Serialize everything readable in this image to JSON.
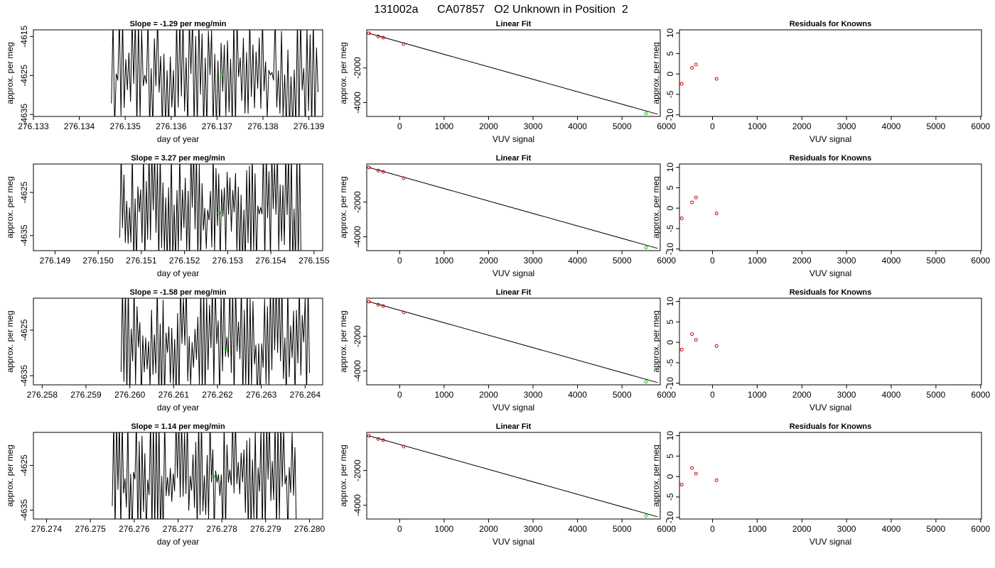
{
  "figure": {
    "title": "131002a      CA07857   O2 Unknown in Position  2"
  },
  "colors": {
    "axis": "#000000",
    "trace": "#000000",
    "known_point": "#cc0000",
    "unknown_point": "#00cc00",
    "fit_line": "#000000"
  },
  "chart_data": [
    {
      "type": "line",
      "row": 1,
      "panel": "time-trace",
      "title": "Slope =  -1.29  per meg/min",
      "xlabel": "day of year",
      "ylabel": "approx. per meg",
      "xlim": [
        276.133,
        276.1393
      ],
      "ylim": [
        -4635.5,
        -4613.3
      ],
      "x_ticks": [
        "276.133",
        "276.134",
        "276.135",
        "276.136",
        "276.137",
        "276.138",
        "276.139"
      ],
      "y_ticks": [
        "-4615",
        "-4625",
        "-4635"
      ],
      "trace": {
        "start": 276.1347,
        "end": 276.1392,
        "seed": 11
      },
      "unknown_point": {
        "x": 276.1371,
        "y": -4624.8
      }
    },
    {
      "type": "scatter",
      "row": 1,
      "panel": "linear-fit",
      "title": "Linear Fit",
      "xlabel": "VUV signal",
      "ylabel": "approx. per meg",
      "xlim": [
        -740,
        5860
      ],
      "ylim": [
        -4800,
        200
      ],
      "x_ticks": [
        "0",
        "1000",
        "2000",
        "3000",
        "4000",
        "5000",
        "6000"
      ],
      "y_ticks": [
        "-2000",
        "-4000"
      ],
      "knowns": [
        {
          "x": -690,
          "y": 0
        },
        {
          "x": -480,
          "y": -180
        },
        {
          "x": -370,
          "y": -250
        },
        {
          "x": 90,
          "y": -620
        }
      ],
      "unknown": {
        "x": 5540,
        "y": -4625
      },
      "fit": {
        "x": [
          -690,
          5800
        ],
        "y": [
          0,
          -4670
        ]
      }
    },
    {
      "type": "scatter",
      "row": 1,
      "panel": "residuals",
      "title": "Residuals for Knowns",
      "xlabel": "VUV signal",
      "ylabel": "approx. per meg",
      "xlim": [
        -740,
        6020
      ],
      "ylim": [
        -10.4,
        10.8
      ],
      "x_ticks": [
        "0",
        "1000",
        "2000",
        "3000",
        "4000",
        "5000",
        "6000"
      ],
      "y_ticks": [
        "10",
        "5",
        "0",
        "-5",
        "-10"
      ],
      "points": [
        {
          "x": -690,
          "y": -2.4
        },
        {
          "x": -460,
          "y": 1.5
        },
        {
          "x": -370,
          "y": 2.3
        },
        {
          "x": 90,
          "y": -1.2
        }
      ]
    },
    {
      "type": "line",
      "row": 2,
      "panel": "time-trace",
      "title": "Slope =  3.27  per meg/min",
      "xlabel": "day of year",
      "ylabel": "approx. per meg",
      "xlim": [
        276.1485,
        276.1552
      ],
      "ylim": [
        -4638.5,
        -4618.4
      ],
      "x_ticks": [
        "276.149",
        "276.150",
        "276.151",
        "276.152",
        "276.153",
        "276.154",
        "276.155"
      ],
      "y_ticks": [
        "-4625",
        "-4635"
      ],
      "trace": {
        "start": 276.1505,
        "end": 276.1547,
        "seed": 23
      },
      "unknown_point": {
        "x": 276.1528,
        "y": -4629.7
      }
    },
    {
      "type": "scatter",
      "row": 2,
      "panel": "linear-fit",
      "title": "Linear Fit",
      "xlabel": "VUV signal",
      "ylabel": "approx. per meg",
      "xlim": [
        -740,
        5860
      ],
      "ylim": [
        -4800,
        200
      ],
      "x_ticks": [
        "0",
        "1000",
        "2000",
        "3000",
        "4000",
        "5000",
        "6000"
      ],
      "y_ticks": [
        "-2000",
        "-4000"
      ],
      "knowns": [
        {
          "x": -690,
          "y": 0
        },
        {
          "x": -480,
          "y": -180
        },
        {
          "x": -370,
          "y": -250
        },
        {
          "x": 90,
          "y": -620
        }
      ],
      "unknown": {
        "x": 5540,
        "y": -4625
      },
      "fit": {
        "x": [
          -690,
          5800
        ],
        "y": [
          0,
          -4670
        ]
      }
    },
    {
      "type": "scatter",
      "row": 2,
      "panel": "residuals",
      "title": "Residuals for Knowns",
      "xlabel": "VUV signal",
      "ylabel": "approx. per meg",
      "xlim": [
        -740,
        6020
      ],
      "ylim": [
        -10.4,
        10.8
      ],
      "x_ticks": [
        "0",
        "1000",
        "2000",
        "3000",
        "4000",
        "5000",
        "6000"
      ],
      "y_ticks": [
        "10",
        "5",
        "0",
        "-5",
        "-10"
      ],
      "points": [
        {
          "x": -690,
          "y": -2.5
        },
        {
          "x": -460,
          "y": 1.4
        },
        {
          "x": -370,
          "y": 2.6
        },
        {
          "x": 90,
          "y": -1.3
        }
      ]
    },
    {
      "type": "line",
      "row": 3,
      "panel": "time-trace",
      "title": "Slope =  -1.58  per meg/min",
      "xlabel": "day of year",
      "ylabel": "approx. per meg",
      "xlim": [
        276.2578,
        276.2644
      ],
      "ylim": [
        -4637.0,
        -4618.0
      ],
      "x_ticks": [
        "276.258",
        "276.259",
        "276.260",
        "276.261",
        "276.262",
        "276.263",
        "276.264"
      ],
      "y_ticks": [
        "-4625",
        "-4635"
      ],
      "trace": {
        "start": 276.2598,
        "end": 276.2641,
        "seed": 37
      },
      "unknown_point": {
        "x": 276.2622,
        "y": -4629.2
      }
    },
    {
      "type": "scatter",
      "row": 3,
      "panel": "linear-fit",
      "title": "Linear Fit",
      "xlabel": "VUV signal",
      "ylabel": "approx. per meg",
      "xlim": [
        -740,
        5860
      ],
      "ylim": [
        -4800,
        200
      ],
      "x_ticks": [
        "0",
        "1000",
        "2000",
        "3000",
        "4000",
        "5000",
        "6000"
      ],
      "y_ticks": [
        "-2000",
        "-4000"
      ],
      "knowns": [
        {
          "x": -690,
          "y": 0
        },
        {
          "x": -480,
          "y": -180
        },
        {
          "x": -370,
          "y": -250
        },
        {
          "x": 90,
          "y": -620
        }
      ],
      "unknown": {
        "x": 5540,
        "y": -4625
      },
      "fit": {
        "x": [
          -690,
          5800
        ],
        "y": [
          0,
          -4670
        ]
      }
    },
    {
      "type": "scatter",
      "row": 3,
      "panel": "residuals",
      "title": "Residuals for Knowns",
      "xlabel": "VUV signal",
      "ylabel": "approx. per meg",
      "xlim": [
        -740,
        6020
      ],
      "ylim": [
        -10.4,
        10.8
      ],
      "x_ticks": [
        "0",
        "1000",
        "2000",
        "3000",
        "4000",
        "5000",
        "6000"
      ],
      "y_ticks": [
        "10",
        "5",
        "0",
        "-5",
        "-10"
      ],
      "points": [
        {
          "x": -690,
          "y": -1.8
        },
        {
          "x": -460,
          "y": 2.0
        },
        {
          "x": -370,
          "y": 0.6
        },
        {
          "x": 90,
          "y": -0.9
        }
      ]
    },
    {
      "type": "line",
      "row": 4,
      "panel": "time-trace",
      "title": "Slope =  1.14  per meg/min",
      "xlabel": "day of year",
      "ylabel": "approx. per meg",
      "xlim": [
        276.2737,
        276.2803
      ],
      "ylim": [
        -4637.0,
        -4617.6
      ],
      "x_ticks": [
        "276.274",
        "276.275",
        "276.276",
        "276.277",
        "276.278",
        "276.279",
        "276.280"
      ],
      "y_ticks": [
        "-4625",
        "-4635"
      ],
      "trace": {
        "start": 276.2755,
        "end": 276.2797,
        "seed": 53
      },
      "unknown_point": {
        "x": 276.2778,
        "y": -4627.5
      }
    },
    {
      "type": "scatter",
      "row": 4,
      "panel": "linear-fit",
      "title": "Linear Fit",
      "xlabel": "VUV signal",
      "ylabel": "approx. per meg",
      "xlim": [
        -740,
        5860
      ],
      "ylim": [
        -4800,
        200
      ],
      "x_ticks": [
        "0",
        "1000",
        "2000",
        "3000",
        "4000",
        "5000",
        "6000"
      ],
      "y_ticks": [
        "-2000",
        "-4000"
      ],
      "knowns": [
        {
          "x": -690,
          "y": 0
        },
        {
          "x": -480,
          "y": -180
        },
        {
          "x": -370,
          "y": -250
        },
        {
          "x": 90,
          "y": -620
        }
      ],
      "unknown": {
        "x": 5540,
        "y": -4625
      },
      "fit": {
        "x": [
          -690,
          5800
        ],
        "y": [
          0,
          -4670
        ]
      }
    },
    {
      "type": "scatter",
      "row": 4,
      "panel": "residuals",
      "title": "Residuals for Knowns",
      "xlabel": "VUV signal",
      "ylabel": "approx. per meg",
      "xlim": [
        -740,
        6020
      ],
      "ylim": [
        -10.4,
        10.8
      ],
      "x_ticks": [
        "0",
        "1000",
        "2000",
        "3000",
        "4000",
        "5000",
        "6000"
      ],
      "y_ticks": [
        "10",
        "5",
        "0",
        "-5",
        "-10"
      ],
      "points": [
        {
          "x": -690,
          "y": -2.0
        },
        {
          "x": -460,
          "y": 2.1
        },
        {
          "x": -370,
          "y": 0.7
        },
        {
          "x": 90,
          "y": -0.9
        }
      ]
    }
  ]
}
